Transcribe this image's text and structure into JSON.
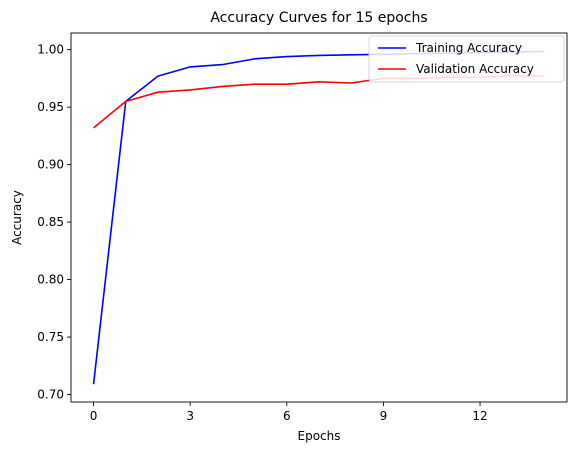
{
  "chart_data": {
    "type": "line",
    "title": "Accuracy Curves for 15 epochs",
    "xlabel": "Epochs",
    "ylabel": "Accuracy",
    "xlim": [
      -0.7,
      14.7
    ],
    "ylim": [
      0.6935,
      1.0145
    ],
    "xticks": [
      0,
      3,
      6,
      9,
      12
    ],
    "xtick_labels": [
      "0",
      "3",
      "6",
      "9",
      "12"
    ],
    "yticks": [
      0.7,
      0.75,
      0.8,
      0.85,
      0.9,
      0.95,
      1.0
    ],
    "ytick_labels": [
      "0.70",
      "0.75",
      "0.80",
      "0.85",
      "0.90",
      "0.95",
      "1.00"
    ],
    "grid": false,
    "legend_position": "top-right",
    "x": [
      0,
      1,
      2,
      3,
      4,
      5,
      6,
      7,
      8,
      9,
      10,
      11,
      12,
      13,
      14
    ],
    "series": [
      {
        "name": "Training Accuracy",
        "color": "#0000ff",
        "values": [
          0.709,
          0.955,
          0.977,
          0.985,
          0.987,
          0.992,
          0.994,
          0.995,
          0.9955,
          0.996,
          0.9965,
          0.997,
          0.9975,
          0.998,
          0.9985
        ]
      },
      {
        "name": "Validation Accuracy",
        "color": "#ff0000",
        "values": [
          0.932,
          0.955,
          0.963,
          0.965,
          0.968,
          0.97,
          0.97,
          0.972,
          0.971,
          0.975,
          0.975,
          0.976,
          0.976,
          0.977,
          0.977
        ]
      }
    ]
  }
}
